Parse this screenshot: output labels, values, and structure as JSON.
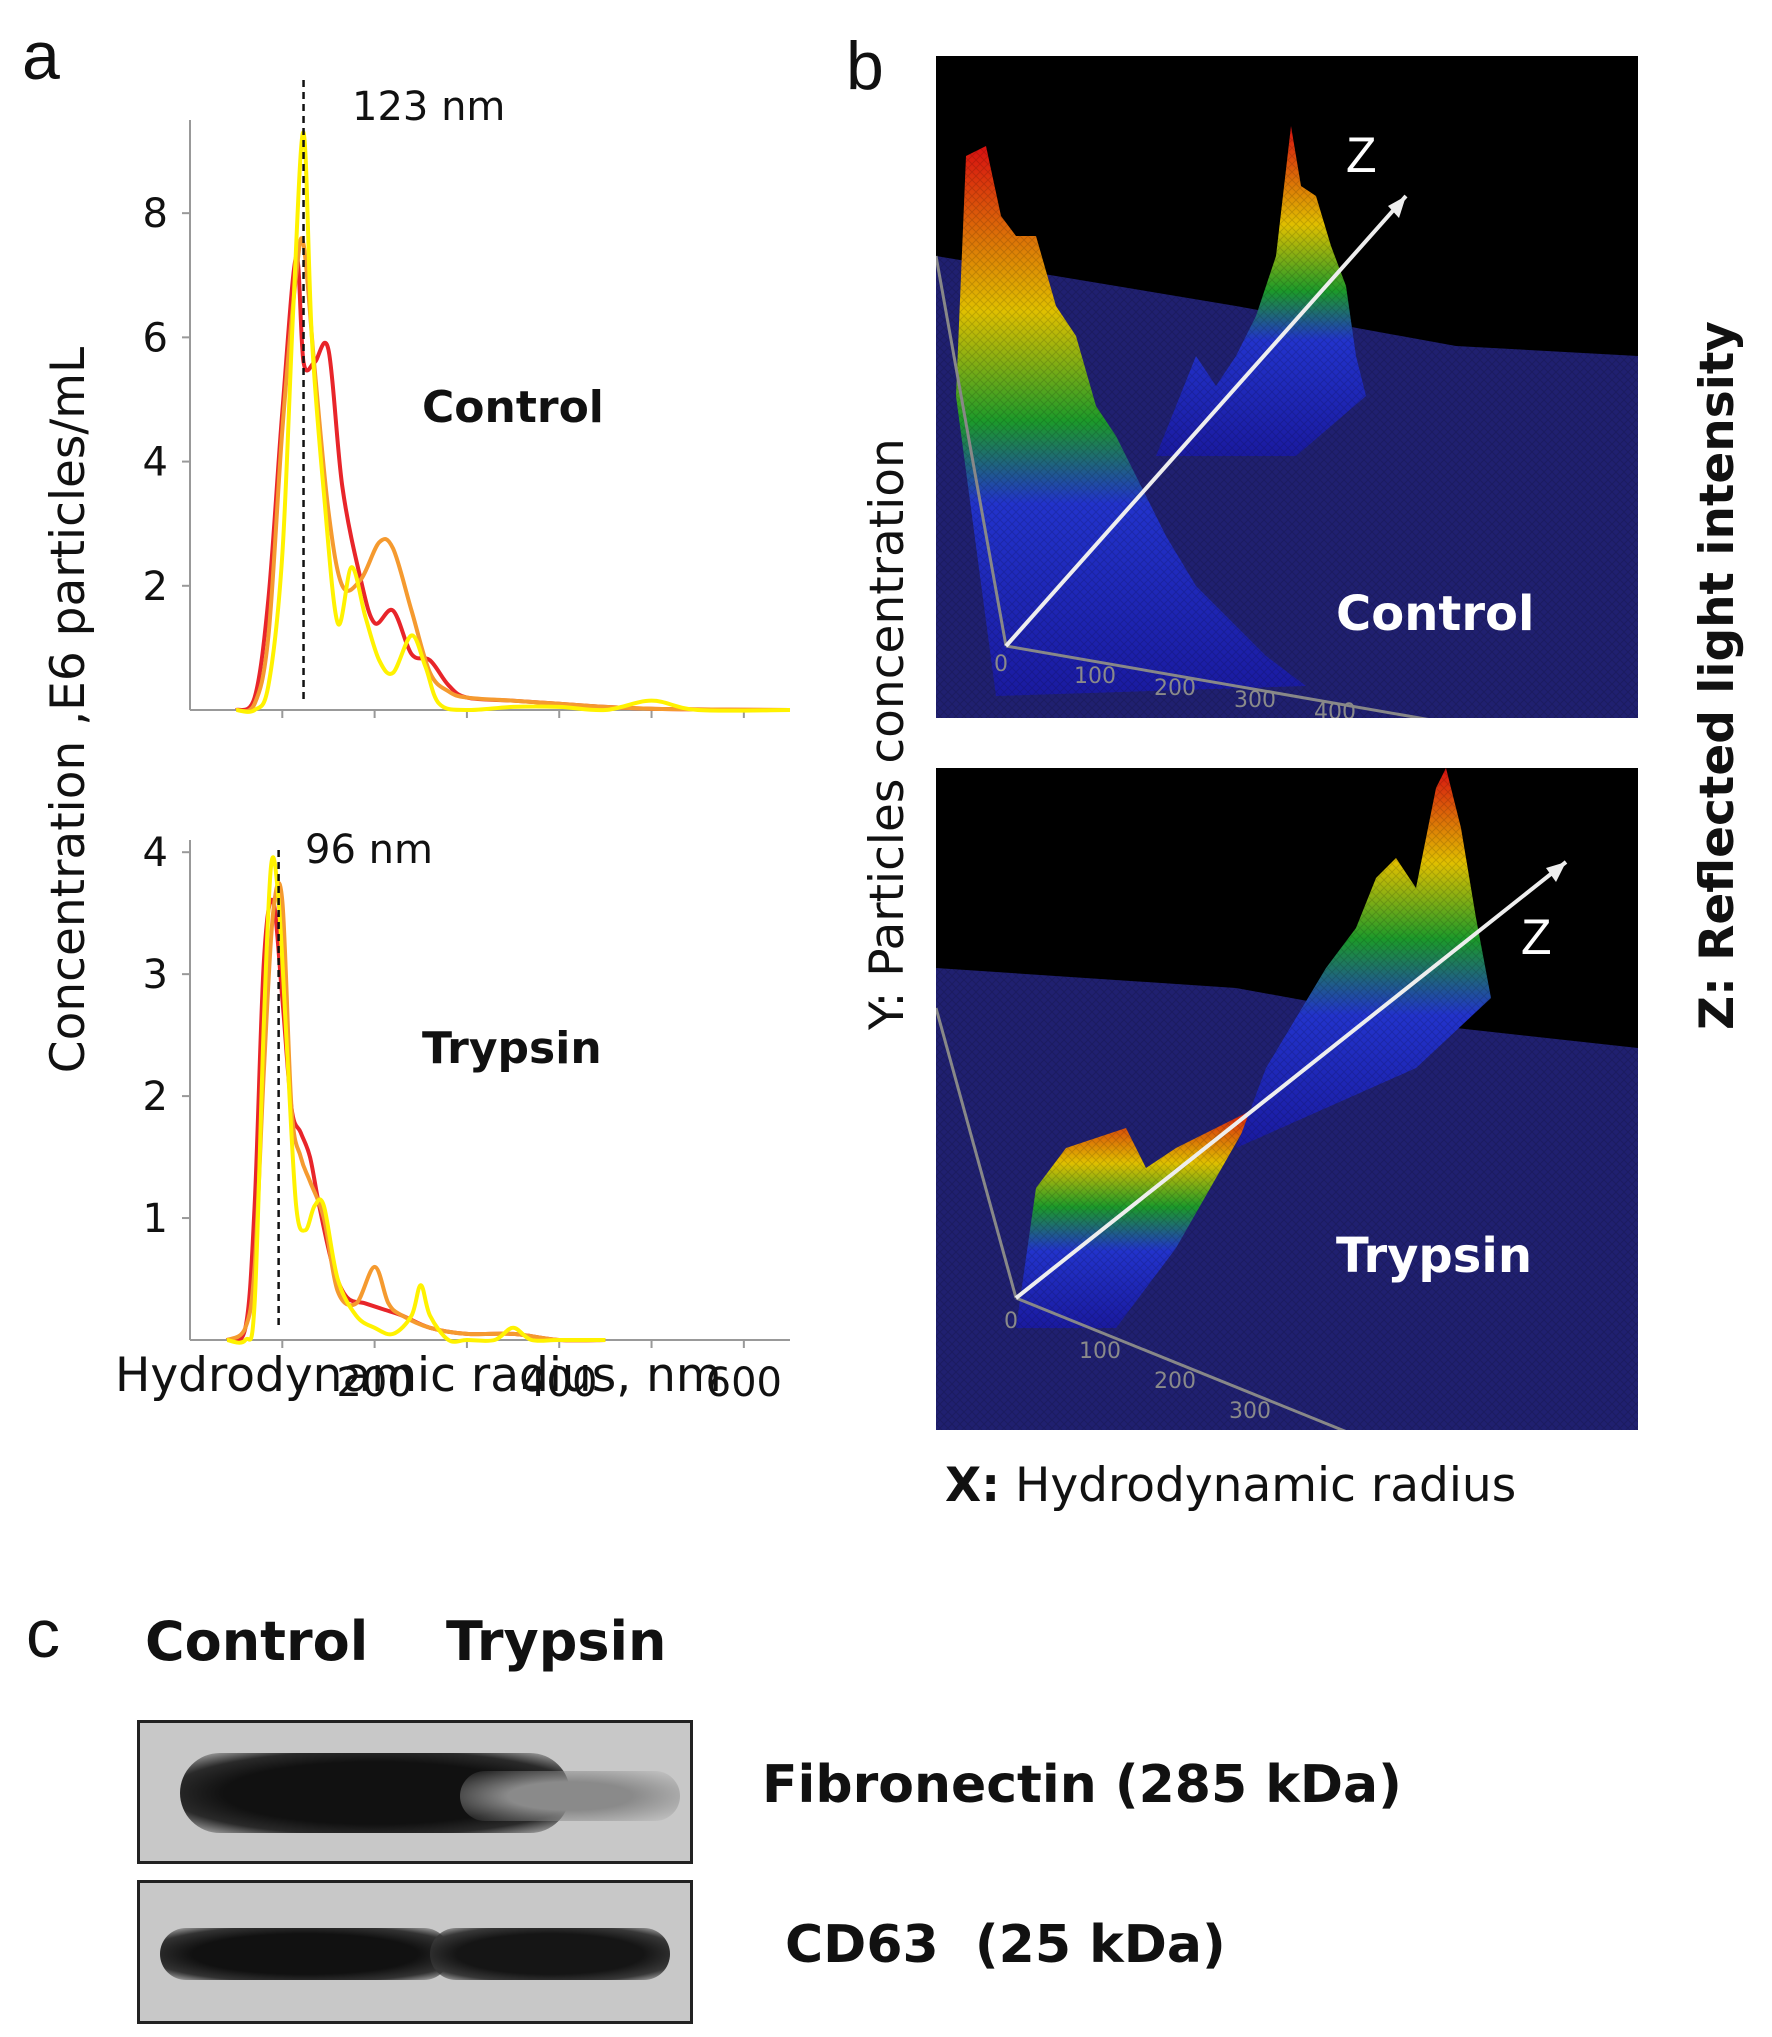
{
  "panels": {
    "a": {
      "letter": "a"
    },
    "b": {
      "letter": "b"
    },
    "c": {
      "letter": "c"
    }
  },
  "chart_data": [
    {
      "type": "line",
      "panel": "a-top",
      "annotation": "123 nm",
      "condition_label": "Control",
      "xlim": [
        0,
        650
      ],
      "ylim": [
        0,
        9.5
      ],
      "yticks": [
        "2",
        "4",
        "6",
        "8"
      ],
      "series": [
        {
          "color": "#e8252a",
          "x": [
            50,
            70,
            85,
            100,
            115,
            123,
            135,
            150,
            165,
            185,
            200,
            220,
            240,
            260,
            280,
            300,
            350,
            400,
            450,
            500,
            550,
            650
          ],
          "values": [
            0,
            0.2,
            1.8,
            4.8,
            7.3,
            5.6,
            5.6,
            5.8,
            3.6,
            2.1,
            1.4,
            1.6,
            0.9,
            0.8,
            0.4,
            0.2,
            0.15,
            0.1,
            0.05,
            0.02,
            0.01,
            0
          ]
        },
        {
          "color": "#f59a2f",
          "x": [
            50,
            70,
            85,
            100,
            115,
            123,
            135,
            150,
            165,
            185,
            205,
            220,
            240,
            260,
            280,
            300,
            350,
            400,
            450,
            500,
            550,
            650
          ],
          "values": [
            0,
            0.1,
            1.2,
            4.5,
            7.0,
            7.5,
            5.5,
            3.2,
            2.0,
            2.1,
            2.7,
            2.6,
            1.6,
            0.6,
            0.3,
            0.2,
            0.15,
            0.1,
            0.05,
            0.02,
            0.01,
            0
          ]
        },
        {
          "color": "#fff200",
          "x": [
            50,
            70,
            85,
            100,
            112,
            123,
            132,
            145,
            160,
            175,
            190,
            205,
            220,
            240,
            255,
            270,
            300,
            350,
            400,
            450,
            500,
            550,
            650
          ],
          "values": [
            0,
            0,
            0.4,
            2.5,
            6.5,
            9.3,
            6.0,
            3.5,
            1.4,
            2.3,
            1.5,
            0.8,
            0.6,
            1.2,
            0.7,
            0.1,
            0,
            0.05,
            0.05,
            0,
            0.15,
            0,
            0
          ]
        }
      ],
      "marker_x": 123
    },
    {
      "type": "line",
      "panel": "a-bottom",
      "annotation": "96 nm",
      "condition_label": "Trypsin",
      "xlabel": "Hydrodynamic radius, nm",
      "xlim": [
        0,
        650
      ],
      "ylim": [
        0,
        4.1
      ],
      "xticks": [
        "200",
        "400",
        "600"
      ],
      "yticks": [
        "1",
        "2",
        "3",
        "4"
      ],
      "series": [
        {
          "color": "#e8252a",
          "x": [
            40,
            60,
            70,
            80,
            90,
            100,
            110,
            120,
            130,
            140,
            155,
            170,
            190,
            210,
            230,
            260,
            300,
            350,
            400,
            450
          ],
          "values": [
            0,
            0.1,
            1.1,
            3.1,
            3.6,
            2.8,
            1.9,
            1.7,
            1.5,
            1.1,
            0.6,
            0.35,
            0.3,
            0.25,
            0.2,
            0.1,
            0.05,
            0.05,
            0,
            0
          ]
        },
        {
          "color": "#f59a2f",
          "x": [
            40,
            60,
            70,
            80,
            90,
            100,
            110,
            120,
            130,
            145,
            160,
            180,
            200,
            215,
            230,
            260,
            300,
            350,
            400,
            450
          ],
          "values": [
            0,
            0.1,
            0.6,
            2.2,
            3.5,
            3.6,
            1.9,
            1.5,
            1.3,
            1.0,
            0.4,
            0.3,
            0.6,
            0.3,
            0.2,
            0.1,
            0.05,
            0.05,
            0,
            0
          ]
        },
        {
          "color": "#fff200",
          "x": [
            40,
            60,
            70,
            80,
            88,
            96,
            105,
            115,
            125,
            135,
            145,
            160,
            180,
            200,
            220,
            240,
            250,
            260,
            280,
            300,
            330,
            350,
            370,
            400,
            450
          ],
          "values": [
            0,
            0,
            0.3,
            2.6,
            3.9,
            3.6,
            2.4,
            1.1,
            0.9,
            1.1,
            1.1,
            0.5,
            0.2,
            0.1,
            0.05,
            0.2,
            0.45,
            0.2,
            0,
            0,
            0,
            0.1,
            0,
            0,
            0
          ]
        }
      ],
      "marker_x": 96
    }
  ],
  "panel_a": {
    "ylabel": "Concentration ,E6 particles/mL"
  },
  "panel_b": {
    "ylabel": "Y: Particles concentration",
    "zlabel": "Z: Reflected light intensity",
    "xlabel_prefix": "X:",
    "xlabel_text": " Hydrodynamic radius",
    "z_marker": "Z",
    "top_label": "Control",
    "bottom_label": "Trypsin",
    "top_ticks": [
      "0",
      "100",
      "200",
      "300",
      "400"
    ],
    "bottom_ticks": [
      "0",
      "100",
      "200",
      "300"
    ]
  },
  "panel_c": {
    "lane_headers": [
      "Control",
      "Trypsin"
    ],
    "bands": [
      {
        "label": "Fibronectin (285 kDa)"
      },
      {
        "label": "CD63  (25 kDa)"
      }
    ]
  }
}
